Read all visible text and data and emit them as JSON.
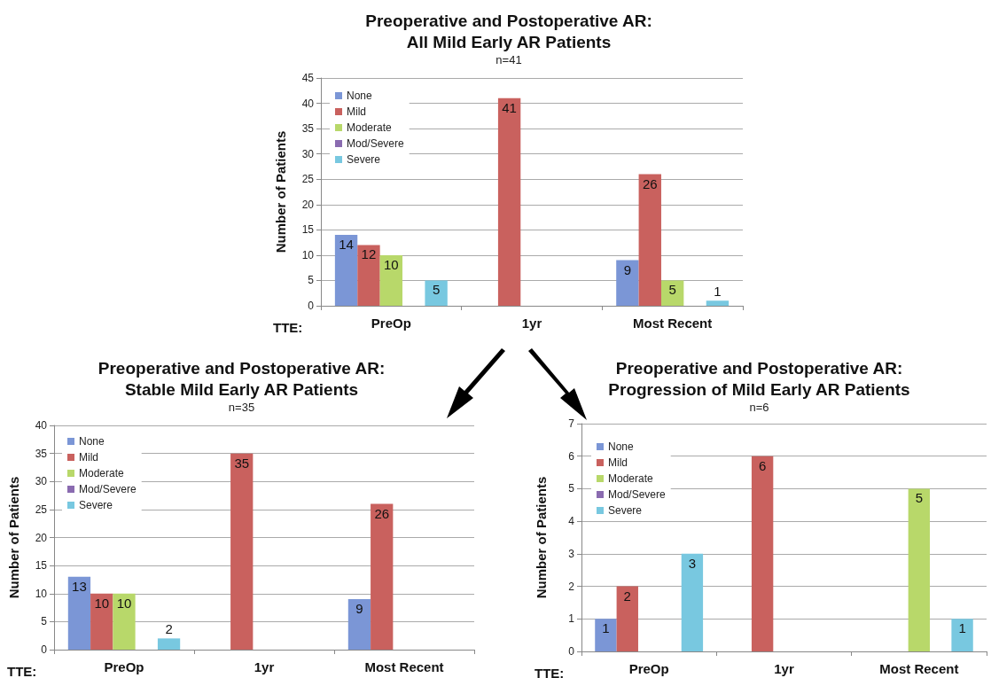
{
  "chart_data": [
    {
      "type": "bar",
      "title": "Preoperative and Postoperative AR:\nAll Mild Early AR Patients",
      "subtitle": "n=41",
      "ylabel": "Number of Patients",
      "categories": [
        "PreOp",
        "1yr",
        "Most Recent"
      ],
      "annotations": [
        "TTE:"
      ],
      "series": [
        {
          "name": "None",
          "color": "#7b96d6",
          "values": [
            14,
            null,
            9
          ]
        },
        {
          "name": "Mild",
          "color": "#c9615e",
          "values": [
            12,
            41,
            26
          ]
        },
        {
          "name": "Moderate",
          "color": "#b8d86a",
          "values": [
            10,
            null,
            5
          ]
        },
        {
          "name": "Mod/Severe",
          "color": "#8a6bb0",
          "values": [
            null,
            null,
            null
          ]
        },
        {
          "name": "Severe",
          "color": "#78c8e0",
          "values": [
            5,
            null,
            1
          ]
        }
      ],
      "ylim": [
        0,
        45
      ],
      "yticks": [
        0,
        5,
        10,
        15,
        20,
        25,
        30,
        35,
        40,
        45
      ],
      "grid": "y",
      "legend": "top left",
      "data_labels": true
    },
    {
      "type": "bar",
      "title": "Preoperative and Postoperative AR:\nStable Mild Early AR Patients",
      "subtitle": "n=35",
      "ylabel": "Number of Patients",
      "categories": [
        "PreOp",
        "1yr",
        "Most Recent"
      ],
      "annotations": [
        "TTE:"
      ],
      "series": [
        {
          "name": "None",
          "color": "#7b96d6",
          "values": [
            13,
            null,
            9
          ]
        },
        {
          "name": "Mild",
          "color": "#c9615e",
          "values": [
            10,
            35,
            26
          ]
        },
        {
          "name": "Moderate",
          "color": "#b8d86a",
          "values": [
            10,
            null,
            null
          ]
        },
        {
          "name": "Mod/Severe",
          "color": "#8a6bb0",
          "values": [
            null,
            null,
            null
          ]
        },
        {
          "name": "Severe",
          "color": "#78c8e0",
          "values": [
            2,
            null,
            null
          ]
        }
      ],
      "ylim": [
        0,
        40
      ],
      "yticks": [
        0,
        5,
        10,
        15,
        20,
        25,
        30,
        35,
        40
      ],
      "grid": "y",
      "legend": "top left",
      "data_labels": true
    },
    {
      "type": "bar",
      "title": "Preoperative and Postoperative AR:\nProgression of Mild Early AR Patients",
      "subtitle": "n=6",
      "ylabel": "Number of Patients",
      "categories": [
        "PreOp",
        "1yr",
        "Most Recent"
      ],
      "annotations": [
        "TTE:"
      ],
      "series": [
        {
          "name": "None",
          "color": "#7b96d6",
          "values": [
            1,
            null,
            null
          ]
        },
        {
          "name": "Mild",
          "color": "#c9615e",
          "values": [
            2,
            6,
            null
          ]
        },
        {
          "name": "Moderate",
          "color": "#b8d86a",
          "values": [
            null,
            null,
            5
          ]
        },
        {
          "name": "Mod/Severe",
          "color": "#8a6bb0",
          "values": [
            null,
            null,
            null
          ]
        },
        {
          "name": "Severe",
          "color": "#78c8e0",
          "values": [
            3,
            null,
            1
          ]
        }
      ],
      "ylim": [
        0,
        7
      ],
      "yticks": [
        0,
        1,
        2,
        3,
        4,
        5,
        6,
        7
      ],
      "grid": "y",
      "legend": "top left",
      "data_labels": true
    }
  ]
}
